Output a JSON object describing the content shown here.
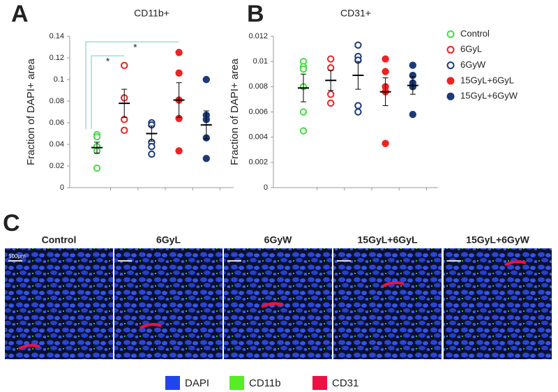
{
  "panels": [
    "A",
    "B",
    "C"
  ],
  "chart_data": [
    {
      "type": "scatter",
      "title": "CD11b+",
      "y_label": "Fraction of DAPI+ area",
      "ylim": [
        0,
        0.14
      ],
      "yticks": [
        0,
        0.02,
        0.04,
        0.06,
        0.08,
        0.1,
        0.12,
        0.14
      ],
      "series": [
        {
          "color": "#44dd44",
          "filled": false,
          "values": [
            0.049,
            0.047,
            0.038,
            0.034,
            0.018
          ],
          "mean": 0.037,
          "error": 0.005
        },
        {
          "color": "#ee2222",
          "filled": false,
          "values": [
            0.113,
            0.083,
            0.063,
            0.053
          ],
          "mean": 0.078,
          "error": 0.013
        },
        {
          "color": "#1a3a7a",
          "filled": false,
          "values": [
            0.06,
            0.058,
            0.042,
            0.038,
            0.031
          ],
          "mean": 0.05,
          "error": 0.007
        },
        {
          "color": "#ee2222",
          "filled": true,
          "values": [
            0.125,
            0.106,
            0.081,
            0.064,
            0.034
          ],
          "mean": 0.081,
          "error": 0.016
        },
        {
          "color": "#1a3a7a",
          "filled": true,
          "values": [
            0.1,
            0.067,
            0.063,
            0.046,
            0.027
          ],
          "mean": 0.058,
          "error": 0.013
        }
      ],
      "annotations": [
        {
          "text": "*",
          "from": 0,
          "to": 1
        },
        {
          "text": "*",
          "from": 0,
          "to": 3
        }
      ]
    },
    {
      "type": "scatter",
      "title": "CD31+",
      "y_label": "Fraction of DAPI+ area",
      "ylim": [
        0,
        0.012
      ],
      "yticks": [
        0,
        0.002,
        0.004,
        0.006,
        0.008,
        0.01,
        0.012
      ],
      "legend": "right",
      "series": [
        {
          "name": "Control",
          "color": "#44dd44",
          "filled": false,
          "values": [
            0.01,
            0.0096,
            0.0094,
            0.008,
            0.006,
            0.0045
          ],
          "mean": 0.0079,
          "error": 0.0011
        },
        {
          "name": "6GyL",
          "color": "#ee2222",
          "filled": false,
          "values": [
            0.0102,
            0.0095,
            0.0074,
            0.0067
          ],
          "mean": 0.0085,
          "error": 0.0008
        },
        {
          "name": "6GyW",
          "color": "#1a3a7a",
          "filled": false,
          "values": [
            0.0113,
            0.0104,
            0.0101,
            0.0065,
            0.006
          ],
          "mean": 0.0089,
          "error": 0.0011
        },
        {
          "name": "15GyL+6GyL",
          "color": "#ee2222",
          "filled": true,
          "values": [
            0.0102,
            0.0092,
            0.008,
            0.0076,
            0.0035
          ],
          "mean": 0.0076,
          "error": 0.0011
        },
        {
          "name": "15GyL+6GyW",
          "color": "#1a3a7a",
          "filled": true,
          "values": [
            0.0097,
            0.0089,
            0.0083,
            0.008,
            0.0058
          ],
          "mean": 0.0081,
          "error": 0.0007
        }
      ]
    }
  ],
  "images": {
    "labels": [
      "Control",
      "6GyL",
      "6GyW",
      "15GyL+6GyL",
      "15GyL+6GyW"
    ],
    "scale_bar": "100μm",
    "legend": [
      {
        "name": "DAPI",
        "color": "#2244ee"
      },
      {
        "name": "CD11b",
        "color": "#55ee22"
      },
      {
        "name": "CD31",
        "color": "#ee1144"
      }
    ]
  }
}
